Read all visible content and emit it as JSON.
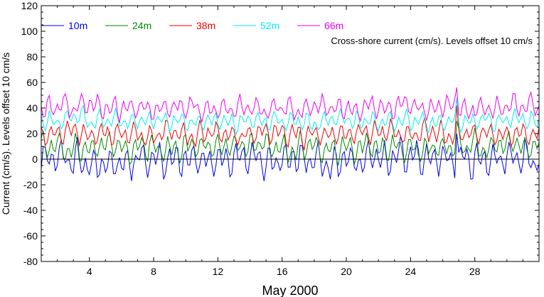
{
  "chart_data": {
    "type": "line",
    "title": "",
    "annotation": "Cross-shore current (cm/s). Levels offset 10 cm/s",
    "xlabel": "May 2000",
    "ylabel": "Current (cm/s). Levels offset 10 cm/s",
    "xlim": [
      1,
      32
    ],
    "ylim": [
      -80,
      120
    ],
    "x_ticks": [
      4,
      8,
      12,
      16,
      20,
      24,
      28
    ],
    "x_tick_labels": [
      "4",
      "8",
      "12",
      "16",
      "20",
      "24",
      "28"
    ],
    "y_ticks": [
      -80,
      -60,
      -40,
      -20,
      0,
      20,
      40,
      60,
      80,
      100,
      120
    ],
    "y_tick_labels": [
      "-80",
      "-60",
      "-40",
      "-20",
      "0",
      "20",
      "40",
      "60",
      "80",
      "100",
      "120"
    ],
    "zero_line": 0,
    "grid": false,
    "legend_position": "top-left",
    "x_step_days": 0.125,
    "series": [
      {
        "name": "10m",
        "color": "#0000ee",
        "offset": 0,
        "amplitude": 9,
        "spike_value": 20
      },
      {
        "name": "24m",
        "color": "#008800",
        "offset": 10,
        "amplitude": 7,
        "spike_value": 30
      },
      {
        "name": "38m",
        "color": "#ee0000",
        "offset": 20,
        "amplitude": 6,
        "spike_value": 42
      },
      {
        "name": "52m",
        "color": "#00eeee",
        "offset": 30,
        "amplitude": 5,
        "spike_value": 48
      },
      {
        "name": "66m",
        "color": "#ee00ee",
        "offset": 40,
        "amplitude": 6,
        "spike_value": 56
      }
    ]
  }
}
